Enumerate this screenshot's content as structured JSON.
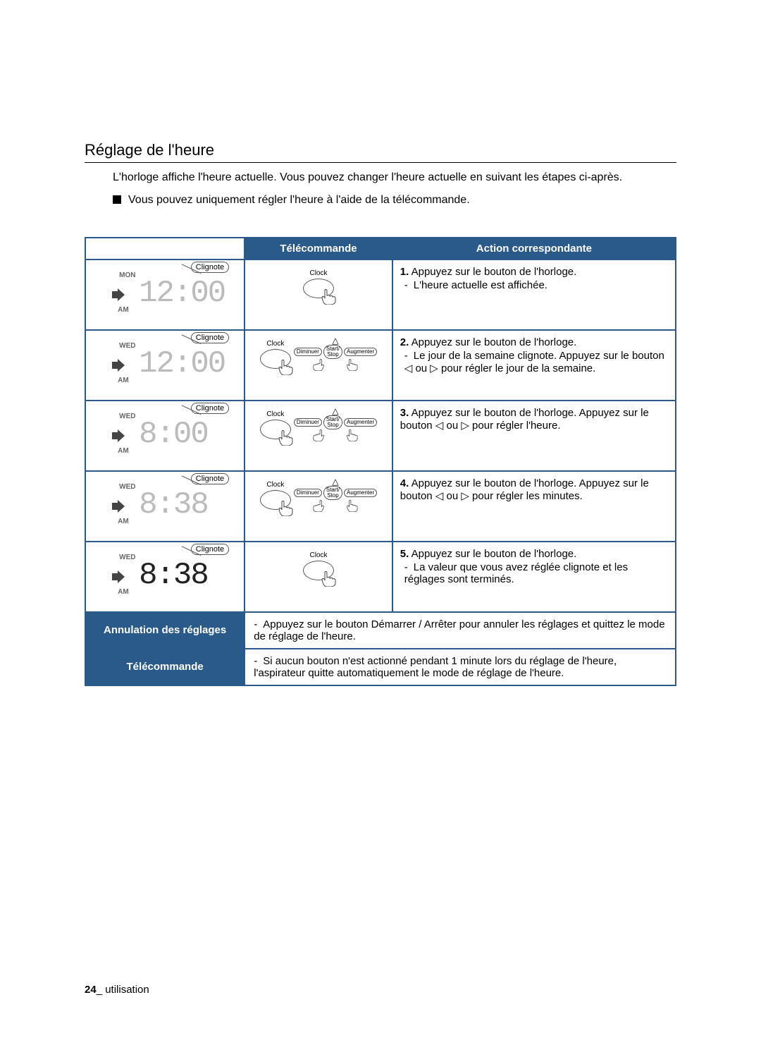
{
  "heading": "Réglage de l'heure",
  "intro": "L'horloge affiche l'heure actuelle. Vous pouvez changer l'heure actuelle en suivant les étapes ci-après.",
  "note": "Vous pouvez uniquement régler l'heure à l'aide de la télécommande.",
  "headers": {
    "remote": "Télécommande",
    "action": "Action correspondante"
  },
  "callout_label": "Clignote",
  "remote_labels": {
    "clock": "Clock",
    "decrease": "Diminuer",
    "increase": "Augmenter",
    "startstop": "Start/\nStop"
  },
  "rows": [
    {
      "display": {
        "day": "MON",
        "time": "12:00",
        "ampm": "AM",
        "outline": true
      },
      "remote_variant": "clock_only",
      "step_num": "1.",
      "step_text": "Appuyez sur le bouton de l'horloge.",
      "bullets": [
        "L'heure actuelle est affichée."
      ]
    },
    {
      "display": {
        "day": "WED",
        "time": "12:00",
        "ampm": "AM",
        "outline": true
      },
      "remote_variant": "full",
      "step_num": "2.",
      "step_text": "Appuyez sur le bouton de l'horloge.",
      "bullets": [
        "Le jour de la semaine clignote. Appuyez sur le bouton ◁ ou ▷ pour régler le jour de la semaine."
      ]
    },
    {
      "display": {
        "day": "WED",
        "time": "8:00",
        "ampm": "AM",
        "outline": true
      },
      "remote_variant": "full",
      "step_num": "3.",
      "step_text": "Appuyez sur le bouton de l'horloge. Appuyez sur le bouton ◁ ou ▷ pour régler l'heure.",
      "bullets": []
    },
    {
      "display": {
        "day": "WED",
        "time": "8:38",
        "ampm": "AM",
        "outline": true
      },
      "remote_variant": "full",
      "step_num": "4.",
      "step_text": "Appuyez sur le bouton de l'horloge. Appuyez sur le bouton ◁ ou ▷ pour régler les minutes.",
      "bullets": []
    },
    {
      "display": {
        "day": "WED",
        "time": "8:38",
        "ampm": "AM",
        "outline": false
      },
      "remote_variant": "clock_only",
      "step_num": "5.",
      "step_text": "Appuyez sur le bouton de l'horloge.",
      "bullets": [
        "La valeur que vous avez réglée clignote et les réglages sont terminés."
      ]
    }
  ],
  "bottom": [
    {
      "label": "Annulation des réglages",
      "text": "Appuyez sur le bouton Démarrer / Arrêter pour annuler les réglages et quittez le mode de réglage de l'heure."
    },
    {
      "label": "Télécommande",
      "text": "Si aucun bouton n'est actionné pendant 1 minute lors du réglage de l'heure, l'aspirateur quitte automatiquement le mode de réglage de l'heure."
    }
  ],
  "footer": {
    "page": "24",
    "section": "_ utilisation"
  },
  "colors": {
    "header_bg": "#2a5a8a",
    "border": "#2a5a8a",
    "text": "#000000",
    "header_text": "#ffffff"
  }
}
